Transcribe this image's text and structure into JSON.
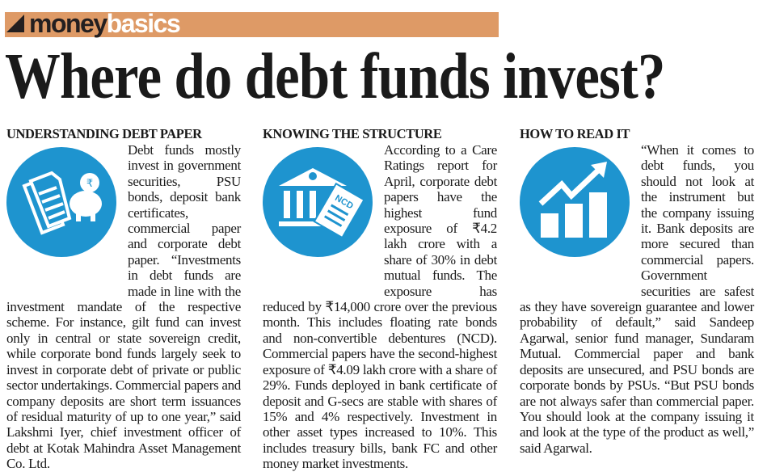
{
  "banner": {
    "brand_dark": "money",
    "brand_light": "basics",
    "color": "#DE9A66"
  },
  "headline": "Where do debt funds invest?",
  "icon_color": "#1E94CF",
  "sections": [
    {
      "heading": "UNDERSTANDING DEBT PAPER",
      "icon": "documents-piggy-bank-rupee-icon",
      "body": "Debt funds mostly invest in government securities, PSU bonds, deposit bank certificates, commercial paper and corporate debt paper. “Investments in debt funds are made in line with the investment mandate of the respective scheme. For instance, gilt fund can invest only in central or state sovereign credit, while corporate bond funds largely seek to invest in corporate debt of private or public sector undertakings. Commercial papers and company deposits are short term issuances of residual maturity of up to one year,” said Lakshmi Iyer, chief investment officer of debt at Kotak Mahindra Asset Management Co. Ltd."
    },
    {
      "heading": "KNOWING THE STRUCTURE",
      "icon": "bank-building-ncd-icon",
      "icon_label": "NCD",
      "body": "According to a Care Ratings report for April, corporate debt papers have the highest fund exposure of ₹4.2 lakh crore with a share of 30% in debt mutual funds. The exposure has reduced by ₹14,000 crore over the previous month. This includes floating rate bonds and non-convertible debentures (NCD). Commercial papers have the second-highest exposure of ₹4.09 lakh crore with a share of 29%. Funds deployed in bank certificate of deposit and G-secs are stable with shares of 15% and 4% respectively. Investment in other asset types increased to 10%. This includes treasury bills, bank FC and other money market investments."
    },
    {
      "heading": "HOW TO READ IT",
      "icon": "bar-chart-growth-arrow-icon",
      "body": "“When it comes to debt funds, you should not look at the instrument but the company issuing it. Bank deposits are more secured than commercial papers. Government securities are safest as they have sovereign guarantee and lower probability of default,” said Sandeep Agarwal, senior fund manager, Sundaram Mutual. Commercial paper and bank deposits are unsecured, and PSU bonds are corporate bonds by PSUs. “But PSU bonds are not always safer than commercial paper. You should look at the company issuing it and look at the type of the product as well,” said Agarwal."
    }
  ]
}
